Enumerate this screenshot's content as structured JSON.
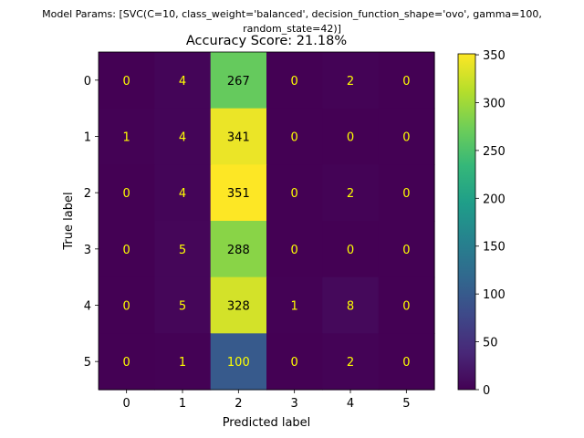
{
  "chart_data": {
    "type": "heatmap",
    "suptitle_line1": "Model Params: [SVC(C=10, class_weight='balanced', decision_function_shape='ovo', gamma=100,",
    "suptitle_line2": "random_state=42)]",
    "title": "Accuracy Score: 21.18%",
    "xlabel": "Predicted label",
    "ylabel": "True label",
    "x_categories": [
      "0",
      "1",
      "2",
      "3",
      "4",
      "5"
    ],
    "y_categories": [
      "0",
      "1",
      "2",
      "3",
      "4",
      "5"
    ],
    "matrix": [
      [
        0,
        4,
        267,
        0,
        2,
        0
      ],
      [
        1,
        4,
        341,
        0,
        0,
        0
      ],
      [
        0,
        4,
        351,
        0,
        2,
        0
      ],
      [
        0,
        5,
        288,
        0,
        0,
        0
      ],
      [
        0,
        5,
        328,
        1,
        8,
        0
      ],
      [
        0,
        1,
        100,
        0,
        2,
        0
      ]
    ],
    "colormap": "viridis",
    "color_range": [
      0,
      351
    ],
    "colorbar_ticks": [
      0,
      50,
      100,
      150,
      200,
      250,
      300,
      350
    ],
    "low_value_text_color": "#ffff00",
    "high_value_text_color": "#000000",
    "grid": false
  }
}
